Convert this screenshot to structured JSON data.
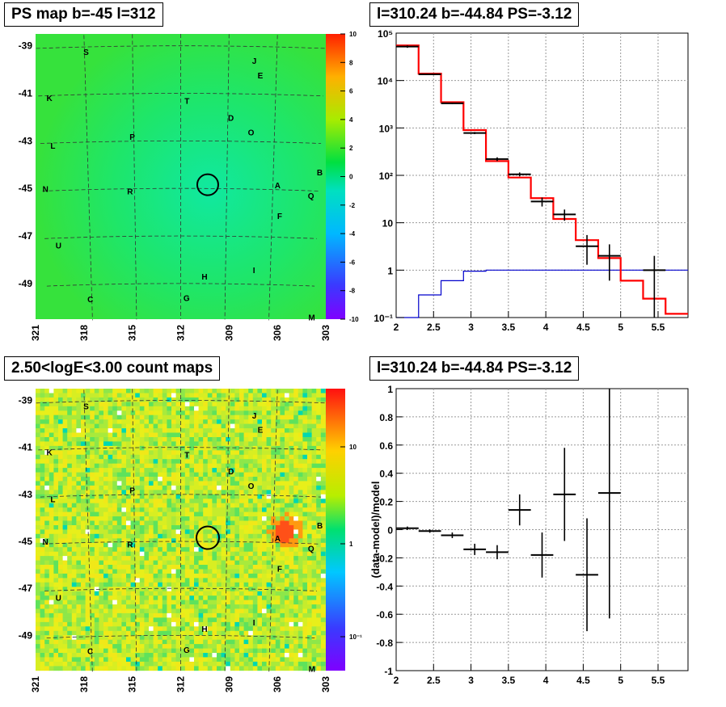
{
  "panels": {
    "ps_map": {
      "title": "PS map b=-45 l=312",
      "y_ticks": [
        "-39",
        "-41",
        "-43",
        "-45",
        "-47",
        "-49"
      ],
      "x_ticks": [
        "321",
        "318",
        "315",
        "312",
        "309",
        "306",
        "303"
      ],
      "colorbar_ticks": [
        "10",
        "8",
        "6",
        "4",
        "2",
        "0",
        "-2",
        "-4",
        "-6",
        "-8",
        "-10"
      ]
    },
    "count_map": {
      "title": "2.50<logE<3.00 count maps",
      "y_ticks": [
        "-39",
        "-41",
        "-43",
        "-45",
        "-47",
        "-49"
      ],
      "x_ticks": [
        "321",
        "318",
        "315",
        "312",
        "309",
        "306",
        "303"
      ],
      "colorbar_ticks": [
        "10",
        "1",
        "10⁻¹"
      ]
    },
    "spectrum": {
      "title": "l=310.24 b=-44.84 PS=-3.12"
    },
    "residual": {
      "title": "l=310.24 b=-44.84 PS=-3.12"
    }
  },
  "source_labels": [
    "S",
    "J",
    "E",
    "K",
    "T",
    "D",
    "O",
    "L",
    "P",
    "B",
    "N",
    "R",
    "A",
    "Q",
    "F",
    "U",
    "I",
    "H",
    "C",
    "G",
    "M"
  ],
  "colors": {
    "model": "#ff0000",
    "data": "#000000",
    "component": "#0000cc"
  },
  "chart_data": [
    {
      "type": "heatmap",
      "title": "PS map b=-45 l=312",
      "xlabel": "",
      "ylabel": "",
      "xlim": [
        321,
        303
      ],
      "ylim": [
        -50.5,
        -38.5
      ],
      "colorscale_range": [
        -10,
        10
      ],
      "sources": [
        {
          "name": "S",
          "l": 317.9,
          "b": -39.2
        },
        {
          "name": "J",
          "l": 307.4,
          "b": -39.6
        },
        {
          "name": "E",
          "l": 307.0,
          "b": -40.2
        },
        {
          "name": "K",
          "l": 320.3,
          "b": -41.1
        },
        {
          "name": "T",
          "l": 311.6,
          "b": -41.3
        },
        {
          "name": "D",
          "l": 308.8,
          "b": -42.0
        },
        {
          "name": "O",
          "l": 307.5,
          "b": -42.6
        },
        {
          "name": "L",
          "l": 320.2,
          "b": -43.1
        },
        {
          "name": "P",
          "l": 315.1,
          "b": -42.8
        },
        {
          "name": "B",
          "l": 303.0,
          "b": -44.2
        },
        {
          "name": "N",
          "l": 320.8,
          "b": -44.9
        },
        {
          "name": "R",
          "l": 315.3,
          "b": -45.1
        },
        {
          "name": "A",
          "l": 305.7,
          "b": -44.8
        },
        {
          "name": "Q",
          "l": 303.5,
          "b": -45.2
        },
        {
          "name": "F",
          "l": 305.5,
          "b": -46.1
        },
        {
          "name": "U",
          "l": 320.1,
          "b": -47.3
        },
        {
          "name": "I",
          "l": 307.1,
          "b": -48.4
        },
        {
          "name": "H",
          "l": 310.4,
          "b": -48.7
        },
        {
          "name": "C",
          "l": 318.1,
          "b": -49.6
        },
        {
          "name": "G",
          "l": 311.6,
          "b": -49.6
        },
        {
          "name": "M",
          "l": 303.1,
          "b": -50.3
        }
      ],
      "target": {
        "l": 310.24,
        "b": -44.84
      }
    },
    {
      "type": "heatmap",
      "title": "2.50<logE<3.00 count maps",
      "xlabel": "",
      "ylabel": "",
      "xlim": [
        321,
        303
      ],
      "ylim": [
        -50.5,
        -38.5
      ],
      "colorscale": "log",
      "colorscale_range": [
        0.05,
        30
      ],
      "target": {
        "l": 310.24,
        "b": -44.84
      }
    },
    {
      "type": "line",
      "title": "l=310.24 b=-44.84 PS=-3.12",
      "xlabel": "",
      "ylabel": "",
      "xlim": [
        2,
        5.9
      ],
      "ylim": [
        0.1,
        100000
      ],
      "yscale": "log",
      "grid": true,
      "series": [
        {
          "style": "step",
          "edges": [
            2.0,
            2.3,
            2.6,
            2.9,
            3.2,
            3.5,
            3.8,
            4.1,
            4.4,
            4.7,
            5.0,
            5.3,
            5.6,
            5.9
          ],
          "values": [
            55000,
            14000,
            3500,
            900,
            200,
            90,
            33,
            12,
            4.3,
            1.8,
            0.6,
            0.25,
            0.12
          ]
        },
        {
          "style": "step",
          "edges": [
            2.0,
            2.3,
            2.6,
            2.9,
            3.2,
            3.5,
            3.8,
            4.1,
            4.4,
            4.7,
            5.0,
            5.3,
            5.6,
            5.9
          ],
          "values": [
            0.1,
            0.3,
            0.6,
            0.95,
            1,
            1,
            1,
            1,
            1,
            1,
            1,
            1,
            1
          ]
        },
        {
          "style": "points",
          "x": [
            2.15,
            2.45,
            2.75,
            3.05,
            3.35,
            3.65,
            3.95,
            4.25,
            4.55,
            4.85,
            5.45
          ],
          "xerr": [
            0.15,
            0.15,
            0.15,
            0.15,
            0.15,
            0.15,
            0.15,
            0.15,
            0.15,
            0.15,
            0.15
          ],
          "y": [
            52000,
            13500,
            3300,
            780,
            220,
            105,
            28,
            15,
            3.2,
            2.0,
            1.0
          ],
          "ylo": [
            49000,
            13000,
            3200,
            740,
            200,
            95,
            22,
            11,
            1.3,
            0.6,
            0.1
          ],
          "yhi": [
            55000,
            14000,
            3400,
            820,
            240,
            115,
            34,
            19,
            5.5,
            3.5,
            2.0
          ]
        }
      ]
    },
    {
      "type": "scatter",
      "title": "l=310.24 b=-44.84 PS=-3.12",
      "xlabel": "",
      "ylabel": "(data-model)/model",
      "xlim": [
        2,
        5.9
      ],
      "ylim": [
        -1,
        1
      ],
      "grid": true,
      "x": [
        2.15,
        2.45,
        2.75,
        3.05,
        3.35,
        3.65,
        3.95,
        4.25,
        4.55,
        4.85
      ],
      "xerr": [
        0.15,
        0.15,
        0.15,
        0.15,
        0.15,
        0.15,
        0.15,
        0.15,
        0.15,
        0.15
      ],
      "y": [
        0.01,
        -0.01,
        -0.04,
        -0.14,
        -0.16,
        0.14,
        -0.18,
        0.25,
        -0.32,
        0.26
      ],
      "yerr": [
        0.012,
        0.012,
        0.02,
        0.04,
        0.05,
        0.11,
        0.16,
        0.33,
        0.4,
        0.89
      ]
    }
  ],
  "spectrum_axis": {
    "x_ticks": [
      "2",
      "2.5",
      "3",
      "3.5",
      "4",
      "4.5",
      "5",
      "5.5"
    ],
    "y_ticks": [
      "10⁵",
      "10⁴",
      "10³",
      "10²",
      "10",
      "1",
      "10⁻¹"
    ]
  },
  "residual_axis": {
    "x_ticks": [
      "2",
      "2.5",
      "3",
      "3.5",
      "4",
      "4.5",
      "5",
      "5.5"
    ],
    "y_ticks": [
      "1",
      "0.8",
      "0.6",
      "0.4",
      "0.2",
      "0",
      "-0.2",
      "-0.4",
      "-0.6",
      "-0.8",
      "-1"
    ]
  }
}
